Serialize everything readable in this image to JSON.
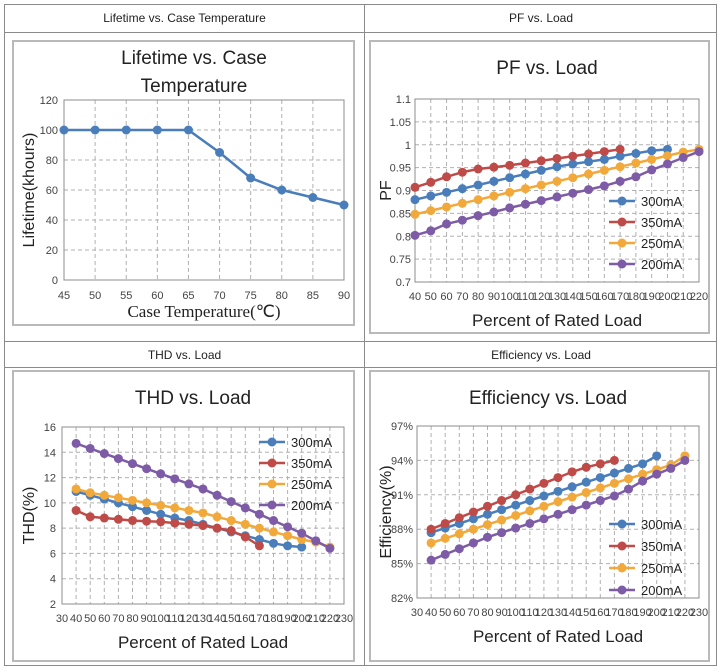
{
  "cells": [
    {
      "caption": "Lifetime vs. Case Temperature"
    },
    {
      "caption": "PF vs. Load"
    },
    {
      "caption": "THD vs. Load"
    },
    {
      "caption": "Efficiency vs. Load"
    }
  ],
  "colors": {
    "blue": "#4a7ebb",
    "red": "#be4b48",
    "orange": "#f2a93b",
    "purple": "#7d5ba6"
  },
  "chart_data": [
    {
      "type": "line",
      "title_lines": [
        "Lifetime vs. Case",
        "Temperature"
      ],
      "xlabel": "Case Temperature(℃)",
      "ylabel": "Lifetime(khours)",
      "x": [
        45,
        50,
        55,
        60,
        65,
        70,
        75,
        80,
        85,
        90
      ],
      "xticks": [
        45,
        50,
        55,
        60,
        65,
        70,
        75,
        80,
        85,
        90
      ],
      "xlim": [
        45,
        90
      ],
      "ylim": [
        0,
        120
      ],
      "yticks": [
        0,
        20,
        40,
        60,
        80,
        100,
        120
      ],
      "ytick_labels": [
        "0",
        "20",
        "40",
        "60",
        "80",
        "100",
        "120"
      ],
      "series": [
        {
          "name": "Lifetime",
          "color": "#4a7ebb",
          "values": [
            100,
            100,
            100,
            100,
            100,
            85,
            68,
            60,
            55,
            50
          ]
        }
      ]
    },
    {
      "type": "line",
      "title_lines": [
        "PF vs. Load"
      ],
      "xlabel": "Percent of Rated Load",
      "ylabel": "PF",
      "xticks": [
        40,
        50,
        60,
        70,
        80,
        90,
        100,
        110,
        120,
        130,
        140,
        150,
        160,
        170,
        180,
        190,
        200,
        210,
        220
      ],
      "xlim": [
        40,
        220
      ],
      "ylim": [
        0.7,
        1.1
      ],
      "yticks": [
        0.7,
        0.75,
        0.8,
        0.85,
        0.9,
        0.95,
        1,
        1.05,
        1.1
      ],
      "ytick_labels": [
        "0.7",
        "0.75",
        "0.8",
        "0.85",
        "0.9",
        "0.95",
        "1",
        "1.05",
        "1.1"
      ],
      "legend": "right",
      "series": [
        {
          "name": "300mA",
          "color": "#4a7ebb",
          "x": [
            40,
            50,
            60,
            70,
            80,
            90,
            100,
            110,
            120,
            130,
            140,
            150,
            160,
            170,
            180,
            190,
            200
          ],
          "values": [
            0.88,
            0.888,
            0.896,
            0.904,
            0.912,
            0.92,
            0.928,
            0.936,
            0.944,
            0.952,
            0.958,
            0.963,
            0.968,
            0.975,
            0.981,
            0.987,
            0.99
          ]
        },
        {
          "name": "350mA",
          "color": "#be4b48",
          "x": [
            40,
            50,
            60,
            70,
            80,
            90,
            100,
            110,
            120,
            130,
            140,
            150,
            160,
            170
          ],
          "values": [
            0.907,
            0.918,
            0.93,
            0.94,
            0.947,
            0.951,
            0.955,
            0.96,
            0.965,
            0.97,
            0.975,
            0.98,
            0.985,
            0.99
          ]
        },
        {
          "name": "250mA",
          "color": "#f2a93b",
          "x": [
            40,
            50,
            60,
            70,
            80,
            90,
            100,
            110,
            120,
            130,
            140,
            150,
            160,
            170,
            180,
            190,
            200,
            210,
            220
          ],
          "values": [
            0.848,
            0.856,
            0.864,
            0.872,
            0.88,
            0.888,
            0.896,
            0.904,
            0.912,
            0.92,
            0.928,
            0.936,
            0.944,
            0.952,
            0.96,
            0.968,
            0.976,
            0.984,
            0.99
          ]
        },
        {
          "name": "200mA",
          "color": "#7d5ba6",
          "x": [
            40,
            50,
            60,
            70,
            80,
            90,
            100,
            110,
            120,
            130,
            140,
            150,
            160,
            170,
            180,
            190,
            200,
            210,
            220
          ],
          "values": [
            0.802,
            0.812,
            0.827,
            0.835,
            0.845,
            0.853,
            0.862,
            0.87,
            0.878,
            0.886,
            0.894,
            0.902,
            0.91,
            0.92,
            0.93,
            0.945,
            0.958,
            0.972,
            0.985
          ]
        }
      ]
    },
    {
      "type": "line",
      "title_lines": [
        "THD vs. Load"
      ],
      "xlabel": "Percent of Rated Load",
      "ylabel": "THD(%)",
      "xticks": [
        30,
        40,
        50,
        60,
        70,
        80,
        90,
        100,
        110,
        120,
        130,
        140,
        150,
        160,
        170,
        180,
        190,
        200,
        210,
        220,
        230
      ],
      "xlim": [
        30,
        230
      ],
      "ylim": [
        2,
        16
      ],
      "yticks": [
        2,
        4,
        6,
        8,
        10,
        12,
        14,
        16
      ],
      "ytick_labels": [
        "2",
        "4",
        "6",
        "8",
        "10",
        "12",
        "14",
        "16"
      ],
      "legend": "top-right",
      "series": [
        {
          "name": "300mA",
          "color": "#4a7ebb",
          "x": [
            40,
            50,
            60,
            70,
            80,
            90,
            100,
            110,
            120,
            130,
            140,
            150,
            160,
            170,
            180,
            190,
            200
          ],
          "values": [
            10.9,
            10.6,
            10.3,
            10.0,
            9.7,
            9.4,
            9.1,
            8.8,
            8.6,
            8.3,
            8.0,
            7.7,
            7.4,
            7.1,
            6.8,
            6.6,
            6.5
          ]
        },
        {
          "name": "350mA",
          "color": "#be4b48",
          "x": [
            40,
            50,
            60,
            70,
            80,
            90,
            100,
            110,
            120,
            130,
            140,
            150,
            160,
            170
          ],
          "values": [
            9.4,
            8.9,
            8.8,
            8.7,
            8.6,
            8.55,
            8.5,
            8.4,
            8.3,
            8.2,
            8.0,
            7.8,
            7.3,
            6.6
          ]
        },
        {
          "name": "250mA",
          "color": "#f2a93b",
          "x": [
            40,
            50,
            60,
            70,
            80,
            90,
            100,
            110,
            120,
            130,
            140,
            150,
            160,
            170,
            180,
            190,
            200,
            210,
            220
          ],
          "values": [
            11.1,
            10.8,
            10.6,
            10.4,
            10.2,
            10.0,
            9.8,
            9.6,
            9.4,
            9.2,
            8.9,
            8.6,
            8.3,
            8.0,
            7.7,
            7.4,
            7.1,
            6.9,
            6.5
          ]
        },
        {
          "name": "200mA",
          "color": "#7d5ba6",
          "x": [
            40,
            50,
            60,
            70,
            80,
            90,
            100,
            110,
            120,
            130,
            140,
            150,
            160,
            170,
            180,
            190,
            200,
            210,
            220
          ],
          "values": [
            14.7,
            14.3,
            13.9,
            13.5,
            13.1,
            12.7,
            12.3,
            11.9,
            11.5,
            11.1,
            10.6,
            10.1,
            9.6,
            9.1,
            8.6,
            8.1,
            7.6,
            7.0,
            6.4
          ]
        }
      ]
    },
    {
      "type": "line",
      "title_lines": [
        "Efficiency vs. Load"
      ],
      "xlabel": "Percent of Rated Load",
      "ylabel": "Efficiency(%)",
      "xticks": [
        30,
        40,
        50,
        60,
        70,
        80,
        90,
        100,
        110,
        120,
        130,
        140,
        150,
        160,
        170,
        180,
        190,
        200,
        210,
        220,
        230
      ],
      "xlim": [
        30,
        230
      ],
      "ylim": [
        82,
        97
      ],
      "yticks": [
        82,
        85,
        88,
        91,
        94,
        97
      ],
      "ytick_labels": [
        "82%",
        "85%",
        "88%",
        "91%",
        "94%",
        "97%"
      ],
      "legend": "bottom-right",
      "series": [
        {
          "name": "300mA",
          "color": "#4a7ebb",
          "x": [
            40,
            50,
            60,
            70,
            80,
            90,
            100,
            110,
            120,
            130,
            140,
            150,
            160,
            170,
            180,
            190,
            200
          ],
          "values": [
            87.7,
            88.1,
            88.5,
            88.9,
            89.3,
            89.7,
            90.1,
            90.5,
            90.9,
            91.3,
            91.7,
            92.1,
            92.5,
            92.9,
            93.3,
            93.7,
            94.4
          ]
        },
        {
          "name": "350mA",
          "color": "#be4b48",
          "x": [
            40,
            50,
            60,
            70,
            80,
            90,
            100,
            110,
            120,
            130,
            140,
            150,
            160,
            170
          ],
          "values": [
            88.0,
            88.5,
            89.0,
            89.5,
            90.0,
            90.5,
            91.0,
            91.5,
            92.0,
            92.5,
            93.0,
            93.4,
            93.7,
            94.0
          ]
        },
        {
          "name": "250mA",
          "color": "#f2a93b",
          "x": [
            40,
            50,
            60,
            70,
            80,
            90,
            100,
            110,
            120,
            130,
            140,
            150,
            160,
            170,
            180,
            190,
            200,
            210,
            220
          ],
          "values": [
            86.8,
            87.2,
            87.6,
            88.0,
            88.4,
            88.8,
            89.2,
            89.6,
            90.0,
            90.4,
            90.8,
            91.2,
            91.6,
            92.0,
            92.4,
            92.8,
            93.2,
            93.6,
            94.4
          ]
        },
        {
          "name": "200mA",
          "color": "#7d5ba6",
          "x": [
            40,
            50,
            60,
            70,
            80,
            90,
            100,
            110,
            120,
            130,
            140,
            150,
            160,
            170,
            180,
            190,
            200,
            210,
            220
          ],
          "values": [
            85.3,
            85.8,
            86.3,
            86.8,
            87.3,
            87.7,
            88.1,
            88.5,
            88.9,
            89.3,
            89.7,
            90.1,
            90.5,
            90.9,
            91.5,
            92.2,
            92.8,
            93.3,
            94.0
          ]
        }
      ]
    }
  ]
}
